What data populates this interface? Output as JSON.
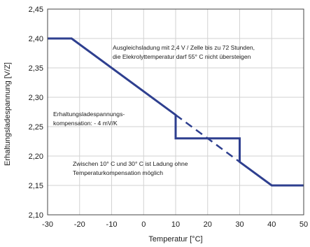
{
  "chart_data": {
    "type": "line",
    "title": "",
    "xlabel": "Temperatur [°C]",
    "ylabel": "Erhaltungsladespannung [V/Z]",
    "xlim": [
      -30,
      50
    ],
    "ylim": [
      2.1,
      2.45
    ],
    "x_ticks": [
      -30,
      -20,
      -10,
      0,
      10,
      20,
      30,
      40,
      50
    ],
    "x_tick_labels": [
      "-30",
      "-20",
      "-10",
      "0",
      "10",
      "20",
      "30",
      "40",
      "50"
    ],
    "y_ticks": [
      2.1,
      2.15,
      2.2,
      2.25,
      2.3,
      2.35,
      2.4,
      2.45
    ],
    "y_tick_labels": [
      "2,10",
      "2,15",
      "2,20",
      "2,25",
      "2,30",
      "2,35",
      "2,40",
      "2,45"
    ],
    "grid": true,
    "legend": "none",
    "colors": {
      "line": "#2e3f8f",
      "grid": "#d2d2d2",
      "frame": "#444444"
    },
    "series": [
      {
        "style": "solid",
        "x": [
          -30,
          -22.5,
          10,
          10,
          30,
          30,
          40,
          50
        ],
        "y": [
          2.4,
          2.4,
          2.27,
          2.23,
          2.23,
          2.19,
          2.15,
          2.15
        ]
      },
      {
        "style": "dashed",
        "x": [
          10,
          30
        ],
        "y": [
          2.27,
          2.19
        ]
      }
    ],
    "annotations": [
      {
        "lines": [
          "Ausgleichsladung mit 2,4 V / Zelle bis zu 72 Stunden,",
          "die Elekrolyttemperatur darf 55° C nicht übersteigen"
        ]
      },
      {
        "lines": [
          "Erhaltungsladespannungs-",
          "kompensation: - 4 mV/K"
        ]
      },
      {
        "lines": [
          "Zwischen 10° C und 30° C ist Ladung ohne",
          "Temperaturkompensation möglich"
        ]
      }
    ]
  }
}
